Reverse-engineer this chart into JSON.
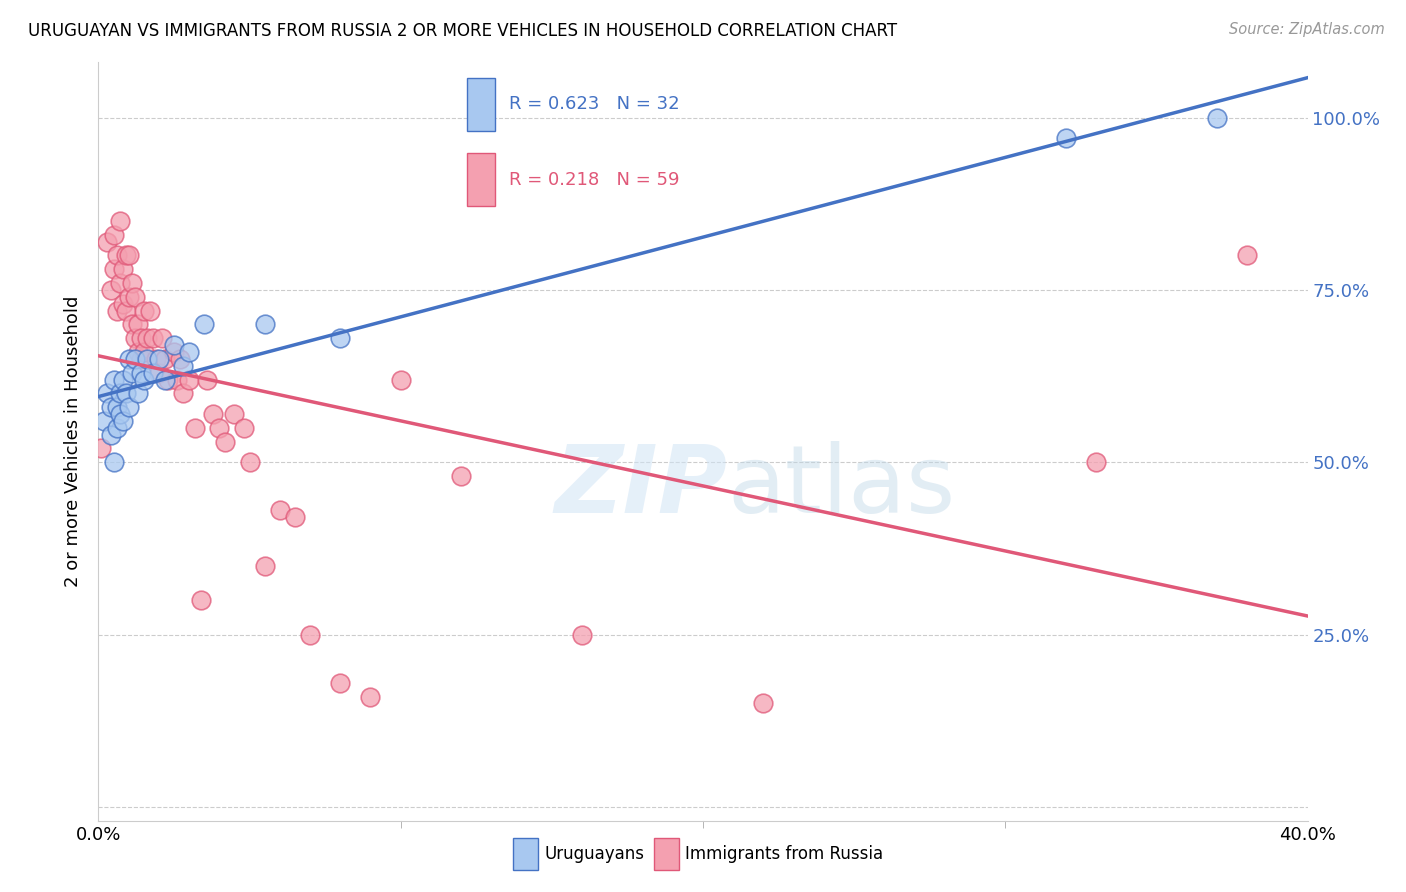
{
  "title": "URUGUAYAN VS IMMIGRANTS FROM RUSSIA 2 OR MORE VEHICLES IN HOUSEHOLD CORRELATION CHART",
  "source": "Source: ZipAtlas.com",
  "ylabel": "2 or more Vehicles in Household",
  "ytick_labels": [
    "",
    "25.0%",
    "50.0%",
    "75.0%",
    "100.0%"
  ],
  "yticks": [
    0.0,
    0.25,
    0.5,
    0.75,
    1.0
  ],
  "xlim": [
    0.0,
    0.4
  ],
  "ylim": [
    -0.02,
    1.08
  ],
  "blue_R": 0.623,
  "blue_N": 32,
  "pink_R": 0.218,
  "pink_N": 59,
  "blue_color": "#A8C8F0",
  "pink_color": "#F4A0B0",
  "line_blue": "#4472C4",
  "line_pink": "#E05878",
  "legend_blue_label": "Uruguayans",
  "legend_pink_label": "Immigrants from Russia",
  "blue_x": [
    0.002,
    0.003,
    0.004,
    0.004,
    0.005,
    0.005,
    0.006,
    0.006,
    0.007,
    0.007,
    0.008,
    0.008,
    0.009,
    0.01,
    0.01,
    0.011,
    0.012,
    0.013,
    0.014,
    0.015,
    0.016,
    0.018,
    0.02,
    0.022,
    0.025,
    0.028,
    0.03,
    0.035,
    0.055,
    0.08,
    0.32,
    0.37
  ],
  "blue_y": [
    0.56,
    0.6,
    0.58,
    0.54,
    0.62,
    0.5,
    0.58,
    0.55,
    0.6,
    0.57,
    0.62,
    0.56,
    0.6,
    0.65,
    0.58,
    0.63,
    0.65,
    0.6,
    0.63,
    0.62,
    0.65,
    0.63,
    0.65,
    0.62,
    0.67,
    0.64,
    0.66,
    0.7,
    0.7,
    0.68,
    0.97,
    1.0
  ],
  "pink_x": [
    0.001,
    0.003,
    0.004,
    0.005,
    0.005,
    0.006,
    0.006,
    0.007,
    0.007,
    0.008,
    0.008,
    0.009,
    0.009,
    0.01,
    0.01,
    0.011,
    0.011,
    0.012,
    0.012,
    0.013,
    0.013,
    0.014,
    0.014,
    0.015,
    0.015,
    0.016,
    0.017,
    0.018,
    0.019,
    0.02,
    0.021,
    0.022,
    0.023,
    0.025,
    0.026,
    0.027,
    0.028,
    0.03,
    0.032,
    0.034,
    0.036,
    0.038,
    0.04,
    0.042,
    0.045,
    0.048,
    0.05,
    0.055,
    0.06,
    0.065,
    0.07,
    0.08,
    0.09,
    0.1,
    0.12,
    0.16,
    0.22,
    0.33,
    0.38
  ],
  "pink_y": [
    0.52,
    0.82,
    0.75,
    0.83,
    0.78,
    0.8,
    0.72,
    0.76,
    0.85,
    0.78,
    0.73,
    0.8,
    0.72,
    0.74,
    0.8,
    0.76,
    0.7,
    0.74,
    0.68,
    0.66,
    0.7,
    0.68,
    0.65,
    0.66,
    0.72,
    0.68,
    0.72,
    0.68,
    0.65,
    0.63,
    0.68,
    0.65,
    0.62,
    0.66,
    0.62,
    0.65,
    0.6,
    0.62,
    0.55,
    0.3,
    0.62,
    0.57,
    0.55,
    0.53,
    0.57,
    0.55,
    0.5,
    0.35,
    0.43,
    0.42,
    0.25,
    0.18,
    0.16,
    0.62,
    0.48,
    0.25,
    0.15,
    0.5,
    0.8
  ]
}
